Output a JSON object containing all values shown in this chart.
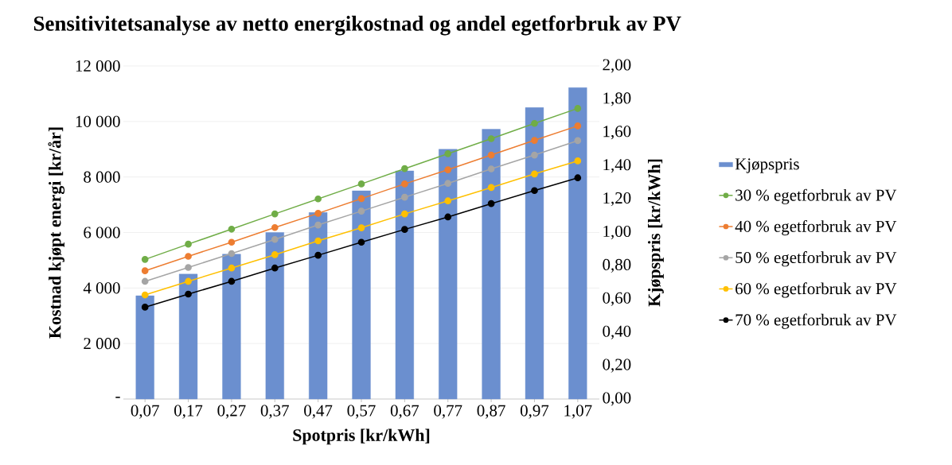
{
  "chart_data": {
    "type": "line",
    "title": "Sensitivitetsanalyse av netto energikostnad og andel egetforbruk av PV",
    "xlabel": "Spotpris [kr/kWh]",
    "ylabel": "Kostnad kjøpt energi [kr/år]",
    "y2label": "Kjøpspris [kr/kWh]",
    "categories": [
      "0,07",
      "0,17",
      "0,27",
      "0,37",
      "0,47",
      "0,57",
      "0,67",
      "0,77",
      "0,87",
      "0,97",
      "1,07"
    ],
    "series": [
      {
        "name": "Kjøpspris",
        "type": "bar",
        "axis": "y2",
        "color": "#6b8fcf",
        "values": [
          0.62,
          0.75,
          0.87,
          1.0,
          1.12,
          1.25,
          1.37,
          1.5,
          1.62,
          1.75,
          1.87
        ]
      },
      {
        "name": "30 % egetforbruk av PV",
        "color": "#70ad47",
        "values": [
          5030,
          5580,
          6120,
          6670,
          7210,
          7750,
          8300,
          8840,
          9380,
          9930,
          10470
        ]
      },
      {
        "name": "40 % egetforbruk av PV",
        "color": "#ed7d31",
        "values": [
          4620,
          5140,
          5650,
          6180,
          6690,
          7220,
          7750,
          8260,
          8790,
          9320,
          9840
        ]
      },
      {
        "name": "50 % egetforbruk av PV",
        "color": "#a5a5a5",
        "values": [
          4240,
          4740,
          5240,
          5750,
          6270,
          6770,
          7270,
          7770,
          8290,
          8790,
          9310
        ]
      },
      {
        "name": "60 % egetforbruk av PV",
        "color": "#ffc000",
        "values": [
          3750,
          4240,
          4720,
          5200,
          5700,
          6170,
          6670,
          7140,
          7620,
          8110,
          8580
        ]
      },
      {
        "name": "70 % egetforbruk av PV",
        "color": "#000000",
        "values": [
          3310,
          3780,
          4240,
          4720,
          5180,
          5650,
          6110,
          6560,
          7040,
          7510,
          7970
        ]
      }
    ],
    "ylim": [
      0,
      12000
    ],
    "yticks": [
      {
        "value": 0,
        "label": "-"
      },
      {
        "value": 2000,
        "label": "2 000"
      },
      {
        "value": 4000,
        "label": "4 000"
      },
      {
        "value": 6000,
        "label": "6 000"
      },
      {
        "value": 8000,
        "label": "8 000"
      },
      {
        "value": 10000,
        "label": "10 000"
      },
      {
        "value": 12000,
        "label": "12 000"
      }
    ],
    "y2lim": [
      0,
      2
    ],
    "y2ticks": [
      {
        "value": 0,
        "label": "0,00"
      },
      {
        "value": 0.2,
        "label": "0,20"
      },
      {
        "value": 0.4,
        "label": "0,40"
      },
      {
        "value": 0.6,
        "label": "0,60"
      },
      {
        "value": 0.8,
        "label": "0,80"
      },
      {
        "value": 1.0,
        "label": "1,00"
      },
      {
        "value": 1.2,
        "label": "1,20"
      },
      {
        "value": 1.4,
        "label": "1,40"
      },
      {
        "value": 1.6,
        "label": "1,60"
      },
      {
        "value": 1.8,
        "label": "1,80"
      },
      {
        "value": 2.0,
        "label": "2,00"
      }
    ],
    "grid": "y",
    "legend": "right",
    "marker": "circle"
  }
}
